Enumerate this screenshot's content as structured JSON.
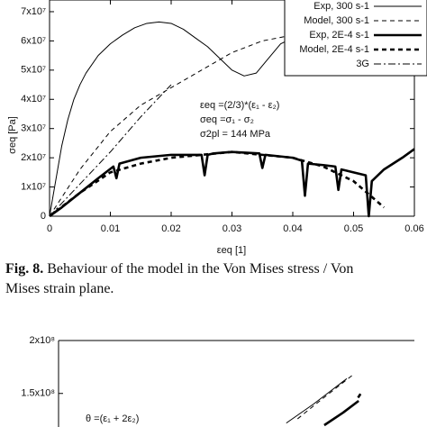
{
  "chart_data": [
    {
      "type": "line",
      "y_label": "σeq [Pa]",
      "x_label": "εeq [1]",
      "xlim": [
        0,
        0.06
      ],
      "xticks": [
        0,
        0.01,
        0.02,
        0.03,
        0.04,
        0.05,
        0.06
      ],
      "ylim": [
        0,
        74000000.0
      ],
      "yticks": [
        0,
        {
          "value": 10000000.0,
          "label": "1x10⁷"
        },
        {
          "value": 20000000.0,
          "label": "2x10⁷"
        },
        {
          "value": 30000000.0,
          "label": "3x10⁷"
        },
        {
          "value": 40000000.0,
          "label": "4x10⁷"
        },
        {
          "value": 50000000.0,
          "label": "5x10⁷"
        },
        {
          "value": 60000000.0,
          "label": "6x10⁷"
        },
        {
          "value": 70000000.0,
          "label": "7x10⁷"
        }
      ],
      "legend": "upper right",
      "annotations": [
        "εeq =(2/3)*(ε₁ - ε₂)",
        "σeq =σ₁ - σ₂",
        "σ2pl = 144 MPa"
      ],
      "series": [
        {
          "name": "Exp, 300 s-1",
          "color": "#000",
          "linestyle": "-",
          "bold": false,
          "x": [
            0,
            0.001,
            0.002,
            0.003,
            0.004,
            0.005,
            0.006,
            0.008,
            0.01,
            0.012,
            0.014,
            0.016,
            0.018,
            0.02,
            0.022,
            0.024,
            0.026,
            0.028,
            0.03,
            0.032,
            0.034,
            0.036,
            0.038,
            0.04,
            0.041
          ],
          "values": [
            0,
            12000000.0,
            24000000.0,
            33000000.0,
            40000000.0,
            45000000.0,
            49000000.0,
            55000000.0,
            59000000.0,
            62000000.0,
            64500000.0,
            66000000.0,
            66500000.0,
            66000000.0,
            64000000.0,
            61000000.0,
            58000000.0,
            54000000.0,
            50000000.0,
            48000000.0,
            49000000.0,
            54000000.0,
            59000000.0,
            61000000.0,
            55000000.0
          ]
        },
        {
          "name": "Model, 300 s-1",
          "color": "#000",
          "linestyle": "--",
          "bold": false,
          "x": [
            0,
            0.005,
            0.01,
            0.015,
            0.02,
            0.025,
            0.03,
            0.035,
            0.04,
            0.045
          ],
          "values": [
            0,
            16000000.0,
            29000000.0,
            38000000.0,
            44000000.0,
            50000000.0,
            56000000.0,
            60000000.0,
            62000000.0,
            61000000.0
          ]
        },
        {
          "name": "Exp, 2E-4 s-1",
          "color": "#000",
          "linestyle": "-",
          "bold": true,
          "x": [
            0,
            0.002,
            0.005,
            0.008,
            0.0105,
            0.011,
            0.0115,
            0.015,
            0.02,
            0.025,
            0.0255,
            0.026,
            0.027,
            0.03,
            0.0345,
            0.035,
            0.0355,
            0.04,
            0.0415,
            0.042,
            0.0425,
            0.045,
            0.047,
            0.0475,
            0.048,
            0.05,
            0.052,
            0.0525,
            0.053,
            0.055,
            0.058,
            0.06
          ],
          "values": [
            0,
            3000000.0,
            8000000.0,
            13000000.0,
            17000000.0,
            13000000.0,
            18000000.0,
            20000000.0,
            21000000.0,
            21000000.0,
            14000000.0,
            21000000.0,
            21500000.0,
            22000000.0,
            21500000.0,
            16500000.0,
            21000000.0,
            20000000.0,
            19000000.0,
            7000000.0,
            18000000.0,
            17500000.0,
            17000000.0,
            9000000.0,
            16000000.0,
            15000000.0,
            14000000.0,
            0,
            12000000.0,
            16000000.0,
            20000000.0,
            23000000.0
          ]
        },
        {
          "name": "Model, 2E-4 s-1",
          "color": "#000",
          "linestyle": "--",
          "bold": true,
          "x": [
            0,
            0.005,
            0.01,
            0.015,
            0.02,
            0.025,
            0.03,
            0.035,
            0.04,
            0.045,
            0.05,
            0.055
          ],
          "values": [
            0,
            8000000.0,
            15000000.0,
            18000000.0,
            20000000.0,
            21000000.0,
            22000000.0,
            21000000.0,
            20000000.0,
            17000000.0,
            12000000.0,
            3000000.0
          ]
        },
        {
          "name": "3G",
          "color": "#000",
          "linestyle": "-.",
          "bold": false,
          "x": [
            0,
            0.005,
            0.01,
            0.015,
            0.02
          ],
          "values": [
            0,
            11000000.0,
            22000000.0,
            34000000.0,
            45000000.0
          ]
        }
      ]
    },
    {
      "type": "line",
      "xlim": [
        0,
        0.06
      ],
      "ylim": [
        120000000.0,
        200000000.0
      ],
      "yticks": [
        {
          "value": 150000000.0,
          "label": "1.5x10⁸"
        },
        {
          "value": 200000000.0,
          "label": "2x10⁸"
        }
      ],
      "annotations": [
        "θ =(ε₁ + 2ε₂)"
      ],
      "series": [
        {
          "color": "#000",
          "linestyle": "-",
          "bold": false,
          "x": [
            0.0384,
            0.043,
            0.0465,
            0.0486
          ],
          "values": [
            122000000.0,
            140000000.0,
            155000000.0,
            164000000.0
          ]
        },
        {
          "color": "#000",
          "linestyle": "--",
          "bold": false,
          "x": [
            0.0403,
            0.0445,
            0.0486,
            0.0495
          ],
          "values": [
            126000000.0,
            145000000.0,
            163000000.0,
            167000000.0
          ]
        },
        {
          "color": "#000",
          "linestyle": "-",
          "bold": true,
          "x": [
            0.0448,
            0.048,
            0.0506
          ],
          "values": [
            120000000.0,
            132000000.0,
            143000000.0
          ]
        },
        {
          "color": "#000",
          "linestyle": "--",
          "bold": true,
          "x": [
            0.0505,
            0.0512
          ],
          "values": [
            146000000.0,
            152000000.0
          ]
        }
      ]
    }
  ],
  "caption": {
    "label": "Fig. 8.",
    "lines": [
      "Behaviour of the model in the Von Mises stress / Von",
      "Mises strain plane."
    ]
  }
}
